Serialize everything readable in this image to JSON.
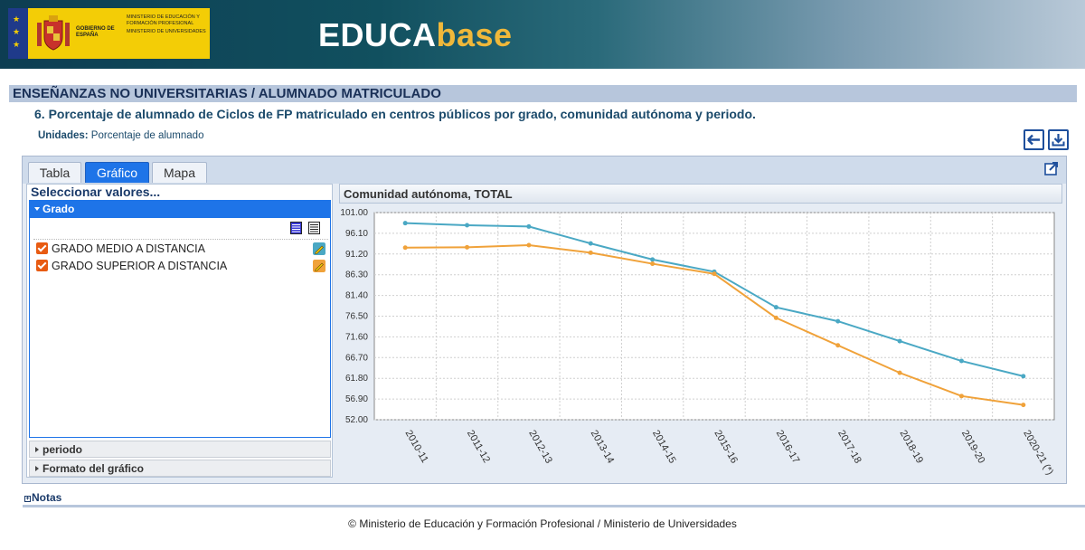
{
  "header": {
    "logo_gobierno": "GOBIERNO DE ESPAÑA",
    "logo_ministerio_1": "MINISTERIO DE EDUCACIÓN Y FORMACIÓN PROFESIONAL",
    "logo_ministerio_2": "MINISTERIO DE UNIVERSIDADES",
    "brand_part1": "EDUCA",
    "brand_part2": "base"
  },
  "section_title": "ENSEÑANZAS NO UNIVERSITARIAS / ALUMNADO MATRICULADO",
  "subtitle": "6. Porcentaje de alumnado de Ciclos de FP matriculado en centros públicos por grado, comunidad autónoma y periodo.",
  "units": {
    "label": "Unidades:",
    "value": "Porcentaje de alumnado"
  },
  "toolbar": {
    "back_icon": "arrow-left-icon",
    "download_icon": "download-icon",
    "popout_icon": "external-link-icon"
  },
  "tabs": [
    {
      "label": "Tabla",
      "active": false
    },
    {
      "label": "Gráfico",
      "active": true
    },
    {
      "label": "Mapa",
      "active": false
    }
  ],
  "left_panel": {
    "title": "Seleccionar valores...",
    "grado": {
      "label": "Grado",
      "options": [
        {
          "label": "GRADO MEDIO A DISTANCIA",
          "checked": true,
          "color": "#4aa8c4"
        },
        {
          "label": "GRADO SUPERIOR A DISTANCIA",
          "checked": true,
          "color": "#f0a23a"
        }
      ]
    },
    "periodo_label": "periodo",
    "formato_label": "Formato del gráfico"
  },
  "chart_header": "Comunidad autónoma, TOTAL",
  "chart_data": {
    "type": "line",
    "title": "Comunidad autónoma, TOTAL",
    "categories": [
      "2010-11",
      "2011-12",
      "2012-13",
      "2013-14",
      "2014-15",
      "2015-16",
      "2016-17",
      "2017-18",
      "2018-19",
      "2019-20",
      "2020-21 (*)"
    ],
    "yticks": [
      "101.00",
      "96.10",
      "91.20",
      "86.30",
      "81.40",
      "76.50",
      "71.60",
      "66.70",
      "61.80",
      "56.90",
      "52.00"
    ],
    "ylim": [
      52.0,
      101.0
    ],
    "grid": true,
    "series": [
      {
        "name": "GRADO MEDIO A DISTANCIA",
        "color": "#4aa8c4",
        "values": [
          98.5,
          98.0,
          97.7,
          93.7,
          89.9,
          87.0,
          78.6,
          75.3,
          70.6,
          65.9,
          62.3
        ]
      },
      {
        "name": "GRADO SUPERIOR A DISTANCIA",
        "color": "#f0a23a",
        "values": [
          92.7,
          92.8,
          93.3,
          91.5,
          88.9,
          86.5,
          76.1,
          69.6,
          63.1,
          57.6,
          55.5
        ]
      }
    ]
  },
  "notas_label": "Notas",
  "footer": "© Ministerio de Educación y Formación Profesional / Ministerio de Universidades"
}
